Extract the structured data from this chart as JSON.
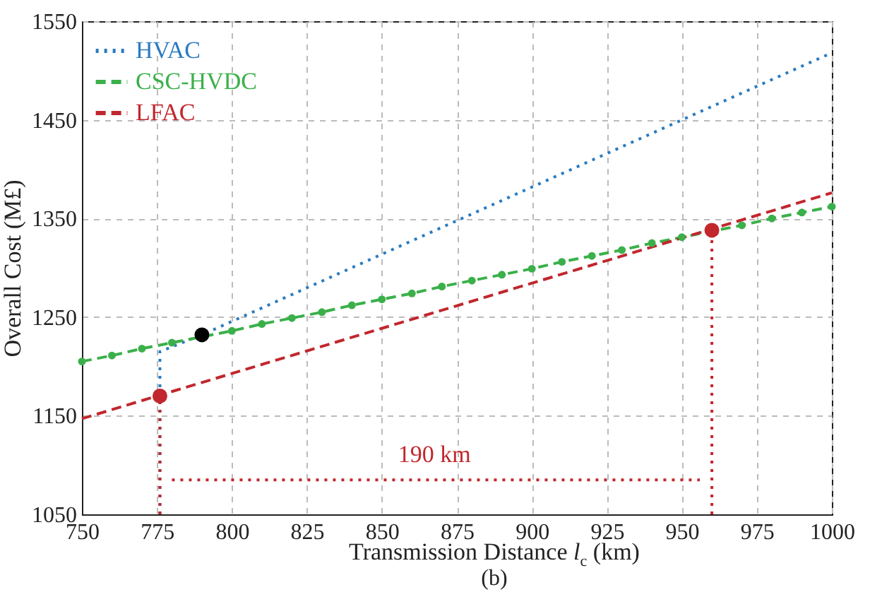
{
  "chart_data": {
    "type": "line",
    "xlabel": "Transmission Distance l$_{c}$ (km)",
    "ylabel": "Overall Cost (M£)",
    "xlim": [
      750,
      1000
    ],
    "ylim": [
      1050,
      1550
    ],
    "xticks": [
      750,
      775,
      800,
      825,
      850,
      875,
      900,
      925,
      950,
      975,
      1000
    ],
    "yticks": [
      1050,
      1150,
      1250,
      1350,
      1450,
      1550
    ],
    "grid": true,
    "legend": "top left",
    "annotations": [
      "190 km",
      "(b)"
    ],
    "series": [
      {
        "name": "HVAC",
        "color": "#2a7bc0",
        "line_style": "dotted",
        "x": [
          776,
          776,
          790,
          1000
        ],
        "values": [
          1050,
          1215,
          1232,
          1518
        ]
      },
      {
        "name": "CSC-HVDC",
        "color": "#3bb04a",
        "line_style": "dashed",
        "marker": "circle",
        "x": [
          750,
          760,
          770,
          780,
          790,
          800,
          810,
          820,
          830,
          840,
          850,
          860,
          870,
          880,
          890,
          900,
          910,
          920,
          930,
          940,
          950,
          960,
          970,
          980,
          990,
          1000
        ],
        "values": [
          1205,
          1211,
          1218,
          1224,
          1230,
          1236,
          1243,
          1249,
          1255,
          1262,
          1268,
          1274,
          1281,
          1287,
          1293,
          1299,
          1306,
          1312,
          1318,
          1325,
          1331,
          1337,
          1343,
          1350,
          1356,
          1362
        ]
      },
      {
        "name": "LFAC",
        "color": "#c1272d",
        "line_style": "dashed",
        "x": [
          750,
          1000
        ],
        "values": [
          1147,
          1376
        ]
      },
      {
        "color": "#c1272d",
        "line_style": "dotted",
        "x": [
          776,
          776
        ],
        "values": [
          1050,
          1170
        ]
      },
      {
        "color": "#c1272d",
        "line_style": "dotted",
        "x": [
          960,
          960
        ],
        "values": [
          1050,
          1338
        ]
      },
      {
        "color": "#c1272d",
        "line_style": "dotted",
        "x": [
          780,
          956
        ],
        "values": [
          1085,
          1085
        ]
      },
      {
        "type": "scatter",
        "color": "#c1272d",
        "x": [
          776,
          960
        ],
        "values": [
          1170,
          1338
        ]
      },
      {
        "type": "scatter",
        "color": "#000000",
        "x": [
          790
        ],
        "values": [
          1232
        ]
      }
    ]
  }
}
